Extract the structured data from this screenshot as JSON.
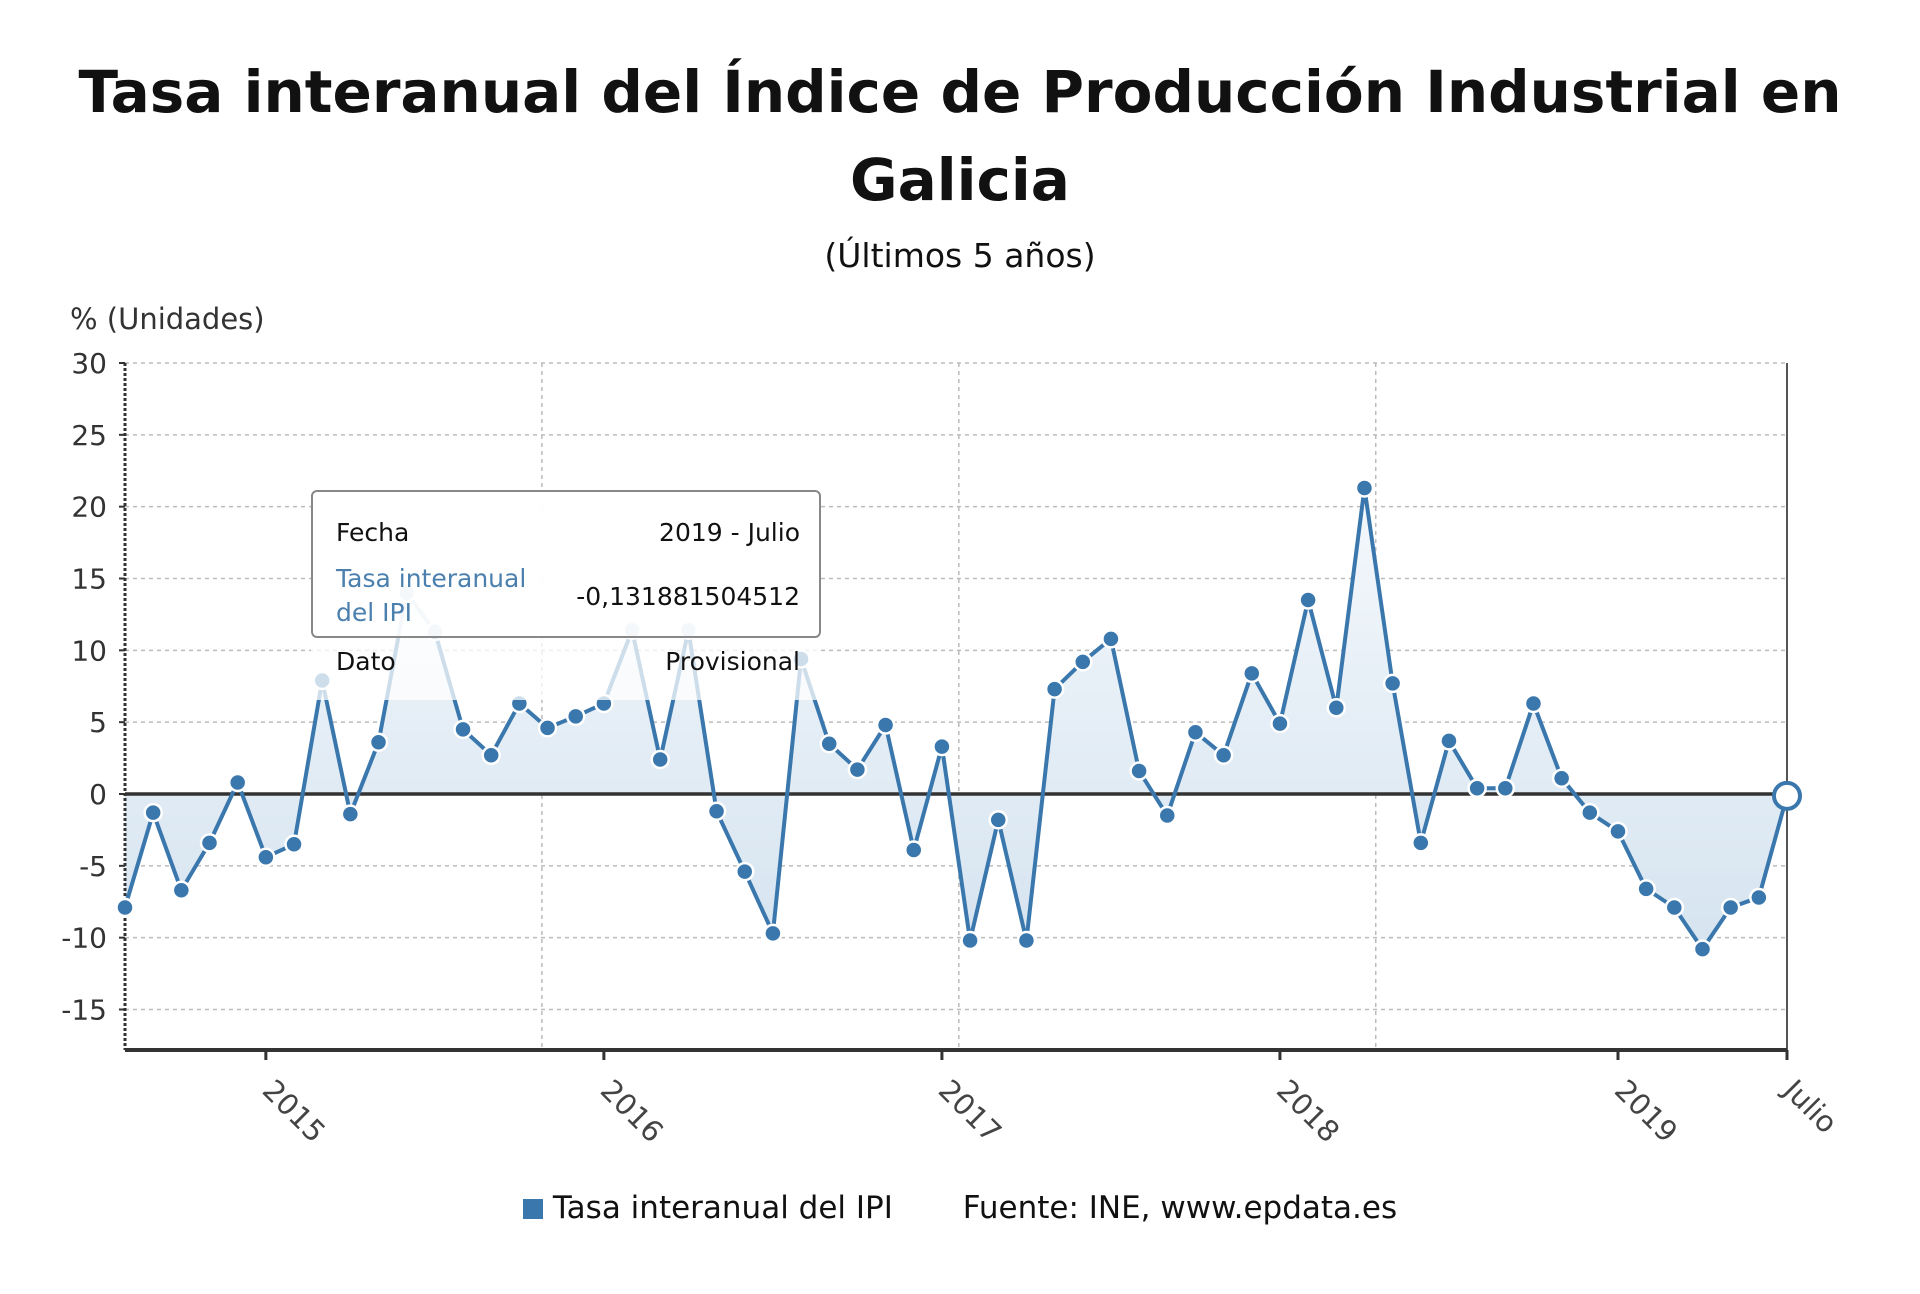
{
  "title": "Tasa interanual del Índice de Producción Industrial en Galicia",
  "subtitle": "(Últimos 5 años)",
  "legend": {
    "series": "Tasa interanual del IPI",
    "source": "Fuente: INE, www.epdata.es"
  },
  "tooltip": {
    "fecha_label": "Fecha",
    "fecha_value": "2019 - Julio",
    "series_label": "Tasa interanual del IPI",
    "series_value": "-0,131881504512",
    "dato_label": "Dato",
    "dato_value": "Provisional"
  },
  "colors": {
    "line": "#3a77ad",
    "fill": "#dce8f3"
  },
  "chart_data": {
    "type": "line",
    "title": "Tasa interanual del Índice de Producción Industrial en Galicia",
    "ylabel": "% (Unidades)",
    "ylim": [
      -18,
      30
    ],
    "yticks": [
      30,
      25,
      20,
      15,
      10,
      5,
      0,
      -5,
      -10,
      -15
    ],
    "xtick_labels": [
      {
        "index": 5,
        "label": "2015"
      },
      {
        "index": 17,
        "label": "2016"
      },
      {
        "index": 29,
        "label": "2017"
      },
      {
        "index": 41,
        "label": "2018"
      },
      {
        "index": 53,
        "label": "2019"
      },
      {
        "index": 59,
        "label": "Julio"
      }
    ],
    "x_start": "2014-08",
    "x_end": "2019-07",
    "grid": true,
    "series": [
      {
        "name": "Tasa interanual del IPI",
        "values": [
          -7.9,
          -1.3,
          -6.7,
          -3.4,
          0.8,
          -4.4,
          -3.5,
          7.9,
          -1.4,
          3.6,
          14.0,
          11.3,
          4.5,
          2.7,
          6.3,
          4.6,
          5.4,
          6.3,
          11.4,
          2.4,
          11.4,
          -1.2,
          -5.4,
          -9.7,
          9.4,
          3.5,
          1.7,
          4.8,
          -3.9,
          3.3,
          -10.2,
          -1.8,
          -10.2,
          7.3,
          9.2,
          10.8,
          1.6,
          -1.5,
          4.3,
          2.7,
          8.4,
          4.9,
          13.5,
          6.0,
          21.3,
          7.7,
          -3.4,
          3.7,
          0.4,
          0.4,
          6.3,
          1.1,
          -1.3,
          -2.6,
          -6.6,
          -7.9,
          -10.8,
          -7.9,
          -7.2,
          -0.13
        ]
      }
    ]
  }
}
